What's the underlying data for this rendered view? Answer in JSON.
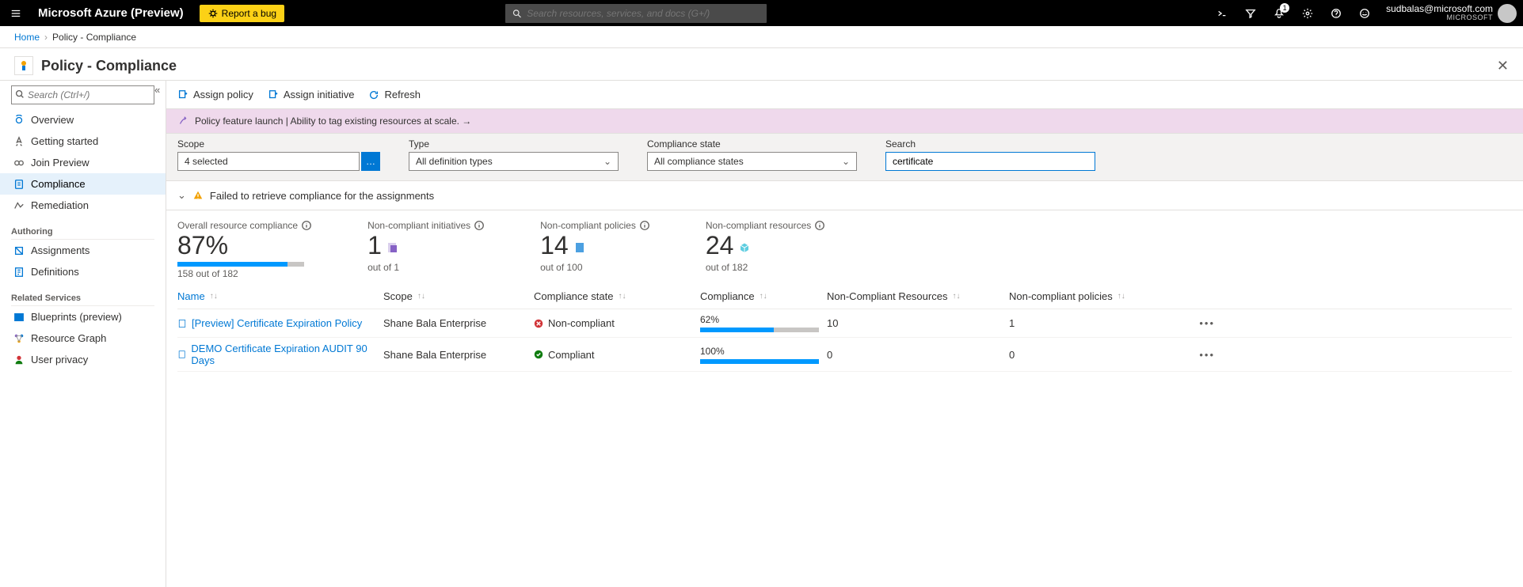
{
  "topbar": {
    "brand": "Microsoft Azure (Preview)",
    "bug_label": "Report a bug",
    "search_placeholder": "Search resources, services, and docs (G+/)",
    "notification_count": "1",
    "account_email": "sudbalas@microsoft.com",
    "account_org": "MICROSOFT"
  },
  "breadcrumb": {
    "home": "Home",
    "current": "Policy - Compliance"
  },
  "blade_title": "Policy - Compliance",
  "sidebar": {
    "search_placeholder": "Search (Ctrl+/)",
    "items": {
      "overview": "Overview",
      "getting_started": "Getting started",
      "join_preview": "Join Preview",
      "compliance": "Compliance",
      "remediation": "Remediation"
    },
    "section_authoring": "Authoring",
    "authoring": {
      "assignments": "Assignments",
      "definitions": "Definitions"
    },
    "section_related": "Related Services",
    "related": {
      "blueprints": "Blueprints (preview)",
      "resource_graph": "Resource Graph",
      "user_privacy": "User privacy"
    }
  },
  "toolbar": {
    "assign_policy": "Assign policy",
    "assign_initiative": "Assign initiative",
    "refresh": "Refresh"
  },
  "banner_text": "Policy feature launch | Ability to tag existing resources at scale. →",
  "filters": {
    "scope_label": "Scope",
    "scope_value": "4 selected",
    "type_label": "Type",
    "type_value": "All definition types",
    "cstate_label": "Compliance state",
    "cstate_value": "All compliance states",
    "search_label": "Search",
    "search_value": "certificate"
  },
  "error_text": "Failed to retrieve compliance for the assignments",
  "stats": {
    "overall": {
      "label": "Overall resource compliance",
      "value": "87%",
      "sub": "158 out of 182",
      "bar_pct": 87
    },
    "initiatives": {
      "label": "Non-compliant initiatives",
      "value": "1",
      "sub": "out of 1"
    },
    "policies": {
      "label": "Non-compliant policies",
      "value": "14",
      "sub": "out of 100"
    },
    "resources": {
      "label": "Non-compliant resources",
      "value": "24",
      "sub": "out of 182"
    }
  },
  "table": {
    "columns": {
      "name": "Name",
      "scope": "Scope",
      "state": "Compliance state",
      "compliance": "Compliance",
      "nc_resources": "Non-Compliant Resources",
      "nc_policies": "Non-compliant policies"
    },
    "rows": [
      {
        "name": "[Preview] Certificate Expiration Policy",
        "scope": "Shane Bala Enterprise",
        "state": "Non-compliant",
        "state_ok": false,
        "pct": 62,
        "pct_label": "62%",
        "ncr": "10",
        "ncp": "1"
      },
      {
        "name": "DEMO Certificate Expiration AUDIT 90 Days",
        "scope": "Shane Bala Enterprise",
        "state": "Compliant",
        "state_ok": true,
        "pct": 100,
        "pct_label": "100%",
        "ncr": "0",
        "ncp": "0"
      }
    ]
  },
  "colors": {
    "accent": "#0078d4",
    "bar": "#0099ff",
    "bar_bg": "#c8c6c4",
    "banner_bg": "#efd9ec",
    "warn": "#f2a100",
    "error": "#d13438",
    "ok": "#107c10"
  }
}
